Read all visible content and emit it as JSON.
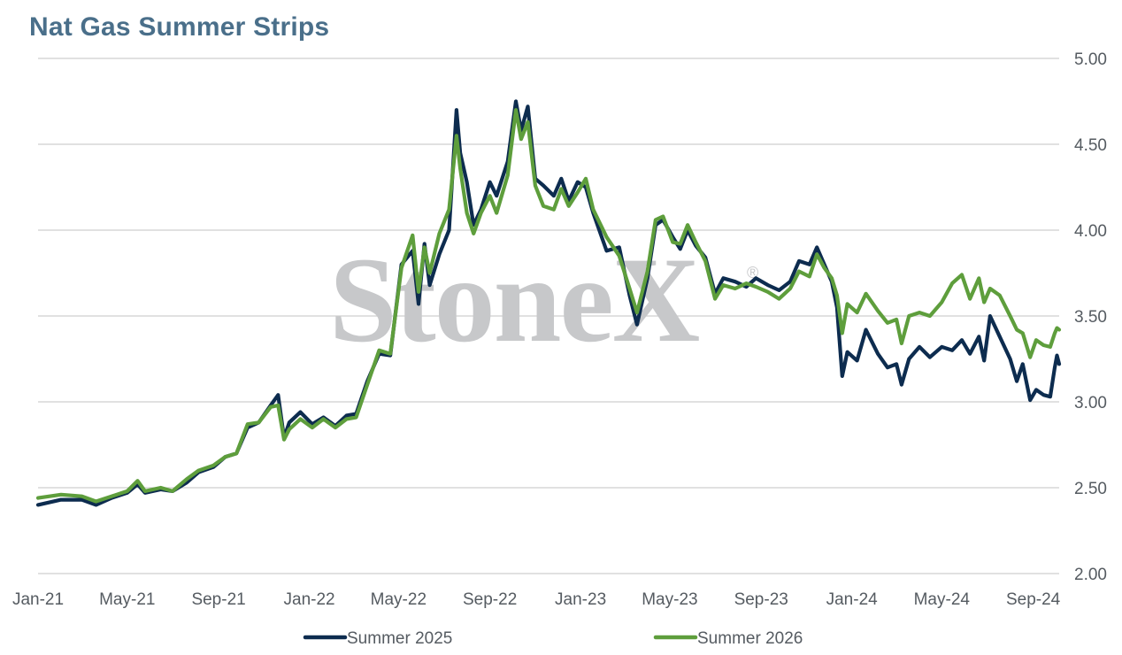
{
  "title": "Nat Gas Summer Strips",
  "watermark": "StoneX",
  "watermark_mark": "®",
  "colors": {
    "summer_2025": "#0d2c4f",
    "summer_2026": "#5e9e3c",
    "grid": "#cfcfcf",
    "title": "#4a6f8a"
  },
  "chart_data": {
    "type": "line",
    "title": "Nat Gas Summer Strips",
    "xlabel": "",
    "ylabel": "",
    "ylim": [
      2.0,
      5.0
    ],
    "y_ticks": [
      "2.00",
      "2.50",
      "3.00",
      "3.50",
      "4.00",
      "4.50",
      "5.00"
    ],
    "y_axis_side": "right",
    "x_ticks": [
      "Jan-21",
      "May-21",
      "Sep-21",
      "Jan-22",
      "May-22",
      "Sep-22",
      "Jan-23",
      "May-23",
      "Sep-23",
      "Jan-24",
      "May-24",
      "Sep-24"
    ],
    "x_range": [
      "2021-01-01",
      "2024-10-06"
    ],
    "grid": "horizontal",
    "legend_position": "bottom",
    "series": [
      {
        "name": "Summer 2025",
        "color": "#0d2c4f",
        "points": [
          [
            "2021-01-01",
            2.4
          ],
          [
            "2021-02-01",
            2.43
          ],
          [
            "2021-03-01",
            2.43
          ],
          [
            "2021-03-20",
            2.4
          ],
          [
            "2021-04-10",
            2.44
          ],
          [
            "2021-05-01",
            2.47
          ],
          [
            "2021-05-15",
            2.52
          ],
          [
            "2021-05-25",
            2.47
          ],
          [
            "2021-06-15",
            2.49
          ],
          [
            "2021-07-01",
            2.48
          ],
          [
            "2021-07-20",
            2.53
          ],
          [
            "2021-08-05",
            2.59
          ],
          [
            "2021-08-25",
            2.62
          ],
          [
            "2021-09-10",
            2.68
          ],
          [
            "2021-09-25",
            2.7
          ],
          [
            "2021-10-10",
            2.85
          ],
          [
            "2021-10-25",
            2.88
          ],
          [
            "2021-11-10",
            2.98
          ],
          [
            "2021-11-20",
            3.04
          ],
          [
            "2021-11-28",
            2.79
          ],
          [
            "2021-12-05",
            2.88
          ],
          [
            "2021-12-20",
            2.94
          ],
          [
            "2022-01-05",
            2.87
          ],
          [
            "2022-01-20",
            2.91
          ],
          [
            "2022-02-05",
            2.86
          ],
          [
            "2022-02-20",
            2.92
          ],
          [
            "2022-03-05",
            2.93
          ],
          [
            "2022-03-20",
            3.12
          ],
          [
            "2022-04-05",
            3.28
          ],
          [
            "2022-04-20",
            3.27
          ],
          [
            "2022-05-05",
            3.8
          ],
          [
            "2022-05-20",
            3.88
          ],
          [
            "2022-05-28",
            3.57
          ],
          [
            "2022-06-05",
            3.92
          ],
          [
            "2022-06-12",
            3.68
          ],
          [
            "2022-06-25",
            3.86
          ],
          [
            "2022-07-08",
            4.0
          ],
          [
            "2022-07-18",
            4.7
          ],
          [
            "2022-07-23",
            4.45
          ],
          [
            "2022-08-01",
            4.28
          ],
          [
            "2022-08-10",
            4.03
          ],
          [
            "2022-08-20",
            4.12
          ],
          [
            "2022-09-01",
            4.28
          ],
          [
            "2022-09-10",
            4.2
          ],
          [
            "2022-09-25",
            4.4
          ],
          [
            "2022-10-06",
            4.75
          ],
          [
            "2022-10-13",
            4.58
          ],
          [
            "2022-10-22",
            4.72
          ],
          [
            "2022-11-01",
            4.3
          ],
          [
            "2022-11-12",
            4.26
          ],
          [
            "2022-11-26",
            4.2
          ],
          [
            "2022-12-06",
            4.3
          ],
          [
            "2022-12-16",
            4.17
          ],
          [
            "2022-12-28",
            4.28
          ],
          [
            "2023-01-08",
            4.25
          ],
          [
            "2023-01-18",
            4.1
          ],
          [
            "2023-02-05",
            3.88
          ],
          [
            "2023-02-22",
            3.9
          ],
          [
            "2023-03-08",
            3.62
          ],
          [
            "2023-03-18",
            3.45
          ],
          [
            "2023-04-01",
            3.72
          ],
          [
            "2023-04-12",
            4.03
          ],
          [
            "2023-04-22",
            4.06
          ],
          [
            "2023-05-05",
            3.96
          ],
          [
            "2023-05-15",
            3.89
          ],
          [
            "2023-05-25",
            4.0
          ],
          [
            "2023-06-05",
            3.91
          ],
          [
            "2023-06-18",
            3.84
          ],
          [
            "2023-07-01",
            3.63
          ],
          [
            "2023-07-12",
            3.72
          ],
          [
            "2023-07-28",
            3.7
          ],
          [
            "2023-08-12",
            3.67
          ],
          [
            "2023-08-25",
            3.72
          ],
          [
            "2023-09-10",
            3.68
          ],
          [
            "2023-09-25",
            3.65
          ],
          [
            "2023-10-10",
            3.7
          ],
          [
            "2023-10-22",
            3.82
          ],
          [
            "2023-11-05",
            3.8
          ],
          [
            "2023-11-15",
            3.9
          ],
          [
            "2023-11-25",
            3.8
          ],
          [
            "2023-12-05",
            3.7
          ],
          [
            "2023-12-12",
            3.55
          ],
          [
            "2023-12-19",
            3.15
          ],
          [
            "2023-12-26",
            3.29
          ],
          [
            "2024-01-08",
            3.24
          ],
          [
            "2024-01-20",
            3.42
          ],
          [
            "2024-02-05",
            3.28
          ],
          [
            "2024-02-18",
            3.2
          ],
          [
            "2024-03-01",
            3.22
          ],
          [
            "2024-03-08",
            3.1
          ],
          [
            "2024-03-18",
            3.25
          ],
          [
            "2024-04-01",
            3.32
          ],
          [
            "2024-04-15",
            3.26
          ],
          [
            "2024-05-01",
            3.32
          ],
          [
            "2024-05-15",
            3.3
          ],
          [
            "2024-05-28",
            3.36
          ],
          [
            "2024-06-08",
            3.28
          ],
          [
            "2024-06-20",
            3.38
          ],
          [
            "2024-06-27",
            3.24
          ],
          [
            "2024-07-05",
            3.5
          ],
          [
            "2024-07-18",
            3.38
          ],
          [
            "2024-08-01",
            3.25
          ],
          [
            "2024-08-10",
            3.12
          ],
          [
            "2024-08-18",
            3.22
          ],
          [
            "2024-08-28",
            3.01
          ],
          [
            "2024-09-05",
            3.07
          ],
          [
            "2024-09-15",
            3.04
          ],
          [
            "2024-09-24",
            3.03
          ],
          [
            "2024-09-30",
            3.2
          ],
          [
            "2024-10-03",
            3.27
          ],
          [
            "2024-10-06",
            3.22
          ]
        ]
      },
      {
        "name": "Summer 2026",
        "color": "#5e9e3c",
        "points": [
          [
            "2021-01-01",
            2.44
          ],
          [
            "2021-02-01",
            2.46
          ],
          [
            "2021-03-01",
            2.45
          ],
          [
            "2021-03-20",
            2.42
          ],
          [
            "2021-04-10",
            2.45
          ],
          [
            "2021-05-01",
            2.48
          ],
          [
            "2021-05-15",
            2.54
          ],
          [
            "2021-05-25",
            2.48
          ],
          [
            "2021-06-15",
            2.5
          ],
          [
            "2021-07-01",
            2.48
          ],
          [
            "2021-07-20",
            2.55
          ],
          [
            "2021-08-05",
            2.6
          ],
          [
            "2021-08-25",
            2.63
          ],
          [
            "2021-09-10",
            2.68
          ],
          [
            "2021-09-25",
            2.7
          ],
          [
            "2021-10-10",
            2.87
          ],
          [
            "2021-10-25",
            2.88
          ],
          [
            "2021-11-10",
            2.97
          ],
          [
            "2021-11-20",
            2.98
          ],
          [
            "2021-11-28",
            2.78
          ],
          [
            "2021-12-05",
            2.84
          ],
          [
            "2021-12-20",
            2.9
          ],
          [
            "2022-01-05",
            2.85
          ],
          [
            "2022-01-20",
            2.9
          ],
          [
            "2022-02-05",
            2.85
          ],
          [
            "2022-02-20",
            2.9
          ],
          [
            "2022-03-05",
            2.91
          ],
          [
            "2022-03-20",
            3.1
          ],
          [
            "2022-04-05",
            3.3
          ],
          [
            "2022-04-20",
            3.28
          ],
          [
            "2022-05-05",
            3.78
          ],
          [
            "2022-05-20",
            3.97
          ],
          [
            "2022-05-28",
            3.64
          ],
          [
            "2022-06-05",
            3.9
          ],
          [
            "2022-06-12",
            3.75
          ],
          [
            "2022-06-25",
            3.98
          ],
          [
            "2022-07-08",
            4.12
          ],
          [
            "2022-07-18",
            4.55
          ],
          [
            "2022-07-23",
            4.36
          ],
          [
            "2022-08-01",
            4.1
          ],
          [
            "2022-08-10",
            3.98
          ],
          [
            "2022-08-20",
            4.1
          ],
          [
            "2022-09-01",
            4.2
          ],
          [
            "2022-09-10",
            4.1
          ],
          [
            "2022-09-25",
            4.32
          ],
          [
            "2022-10-06",
            4.7
          ],
          [
            "2022-10-13",
            4.53
          ],
          [
            "2022-10-22",
            4.63
          ],
          [
            "2022-11-01",
            4.26
          ],
          [
            "2022-11-12",
            4.14
          ],
          [
            "2022-11-26",
            4.12
          ],
          [
            "2022-12-06",
            4.24
          ],
          [
            "2022-12-16",
            4.14
          ],
          [
            "2022-12-28",
            4.22
          ],
          [
            "2023-01-08",
            4.3
          ],
          [
            "2023-01-18",
            4.12
          ],
          [
            "2023-02-05",
            3.96
          ],
          [
            "2023-02-22",
            3.85
          ],
          [
            "2023-03-08",
            3.66
          ],
          [
            "2023-03-18",
            3.52
          ],
          [
            "2023-04-01",
            3.76
          ],
          [
            "2023-04-12",
            4.06
          ],
          [
            "2023-04-22",
            4.08
          ],
          [
            "2023-05-05",
            3.93
          ],
          [
            "2023-05-15",
            3.92
          ],
          [
            "2023-05-25",
            4.03
          ],
          [
            "2023-06-05",
            3.93
          ],
          [
            "2023-06-18",
            3.82
          ],
          [
            "2023-07-01",
            3.6
          ],
          [
            "2023-07-12",
            3.68
          ],
          [
            "2023-07-28",
            3.66
          ],
          [
            "2023-08-12",
            3.69
          ],
          [
            "2023-08-25",
            3.67
          ],
          [
            "2023-09-10",
            3.64
          ],
          [
            "2023-09-25",
            3.6
          ],
          [
            "2023-10-10",
            3.66
          ],
          [
            "2023-10-22",
            3.76
          ],
          [
            "2023-11-05",
            3.73
          ],
          [
            "2023-11-15",
            3.86
          ],
          [
            "2023-11-25",
            3.78
          ],
          [
            "2023-12-05",
            3.72
          ],
          [
            "2023-12-12",
            3.62
          ],
          [
            "2023-12-19",
            3.4
          ],
          [
            "2023-12-26",
            3.57
          ],
          [
            "2024-01-08",
            3.52
          ],
          [
            "2024-01-20",
            3.63
          ],
          [
            "2024-02-05",
            3.53
          ],
          [
            "2024-02-18",
            3.46
          ],
          [
            "2024-03-01",
            3.48
          ],
          [
            "2024-03-08",
            3.34
          ],
          [
            "2024-03-18",
            3.5
          ],
          [
            "2024-04-01",
            3.52
          ],
          [
            "2024-04-15",
            3.5
          ],
          [
            "2024-05-01",
            3.58
          ],
          [
            "2024-05-15",
            3.69
          ],
          [
            "2024-05-28",
            3.74
          ],
          [
            "2024-06-08",
            3.6
          ],
          [
            "2024-06-20",
            3.72
          ],
          [
            "2024-06-27",
            3.58
          ],
          [
            "2024-07-05",
            3.66
          ],
          [
            "2024-07-18",
            3.62
          ],
          [
            "2024-08-01",
            3.5
          ],
          [
            "2024-08-10",
            3.42
          ],
          [
            "2024-08-18",
            3.4
          ],
          [
            "2024-08-28",
            3.26
          ],
          [
            "2024-09-05",
            3.36
          ],
          [
            "2024-09-15",
            3.33
          ],
          [
            "2024-09-24",
            3.32
          ],
          [
            "2024-09-30",
            3.4
          ],
          [
            "2024-10-03",
            3.43
          ],
          [
            "2024-10-06",
            3.42
          ]
        ]
      }
    ]
  }
}
